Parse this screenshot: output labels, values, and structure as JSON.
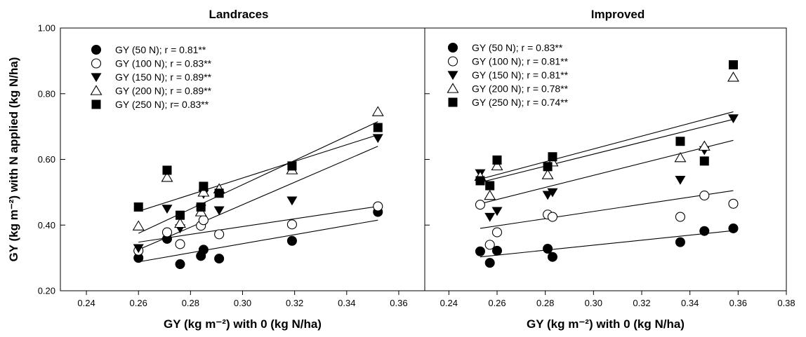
{
  "chart_data": {
    "type": "scatter",
    "y_axis_label": "GY (kg m⁻²) with N applied (kg N/ha)",
    "y_ticks": [
      "0.20",
      "0.40",
      "0.60",
      "0.80",
      "1.00"
    ],
    "ylim": [
      0.2,
      1.0
    ],
    "panels": [
      {
        "title": "Landraces",
        "xlabel": "GY (kg m⁻²) with 0 (kg N/ha)",
        "xlim": [
          0.23,
          0.37
        ],
        "x_ticks": [
          "0.24",
          "0.26",
          "0.28",
          "0.30",
          "0.32",
          "0.34",
          "0.36"
        ],
        "series": [
          {
            "name": "GY (50 N); r = 0.81**",
            "marker": "circle-filled",
            "points": [
              [
                0.26,
                0.3
              ],
              [
                0.271,
                0.358
              ],
              [
                0.276,
                0.281
              ],
              [
                0.284,
                0.306
              ],
              [
                0.285,
                0.325
              ],
              [
                0.291,
                0.298
              ],
              [
                0.319,
                0.352
              ],
              [
                0.352,
                0.44
              ]
            ],
            "fit": [
              [
                0.26,
                0.288
              ],
              [
                0.352,
                0.415
              ]
            ]
          },
          {
            "name": "GY (100 N); r = 0.83**",
            "marker": "circle-open",
            "points": [
              [
                0.26,
                0.322
              ],
              [
                0.271,
                0.378
              ],
              [
                0.276,
                0.342
              ],
              [
                0.284,
                0.398
              ],
              [
                0.285,
                0.415
              ],
              [
                0.291,
                0.372
              ],
              [
                0.319,
                0.402
              ],
              [
                0.352,
                0.457
              ]
            ],
            "fit": [
              [
                0.26,
                0.348
              ],
              [
                0.352,
                0.457
              ]
            ]
          },
          {
            "name": "GY (150 N); r = 0.89**",
            "marker": "triangle-down-filled",
            "points": [
              [
                0.26,
                0.33
              ],
              [
                0.271,
                0.45
              ],
              [
                0.276,
                0.39
              ],
              [
                0.284,
                0.45
              ],
              [
                0.285,
                0.495
              ],
              [
                0.291,
                0.445
              ],
              [
                0.319,
                0.475
              ],
              [
                0.352,
                0.665
              ]
            ],
            "fit": [
              [
                0.26,
                0.325
              ],
              [
                0.352,
                0.64
              ]
            ]
          },
          {
            "name": "GY (200 N); r = 0.89**",
            "marker": "triangle-up-open",
            "points": [
              [
                0.26,
                0.397
              ],
              [
                0.271,
                0.545
              ],
              [
                0.276,
                0.405
              ],
              [
                0.284,
                0.44
              ],
              [
                0.285,
                0.5
              ],
              [
                0.291,
                0.51
              ],
              [
                0.319,
                0.568
              ],
              [
                0.352,
                0.745
              ]
            ],
            "fit": [
              [
                0.26,
                0.375
              ],
              [
                0.352,
                0.715
              ]
            ]
          },
          {
            "name": "GY (250 N); r= 0.83**",
            "marker": "square-filled",
            "points": [
              [
                0.26,
                0.455
              ],
              [
                0.271,
                0.567
              ],
              [
                0.276,
                0.43
              ],
              [
                0.284,
                0.455
              ],
              [
                0.285,
                0.518
              ],
              [
                0.291,
                0.497
              ],
              [
                0.319,
                0.58
              ],
              [
                0.352,
                0.697
              ]
            ],
            "fit": [
              [
                0.26,
                0.442
              ],
              [
                0.352,
                0.675
              ]
            ]
          }
        ]
      },
      {
        "title": "Improved",
        "xlabel": "GY (kg m⁻²) with 0 (kg N/ha)",
        "xlim": [
          0.23,
          0.38
        ],
        "x_ticks": [
          "0.24",
          "0.26",
          "0.28",
          "0.30",
          "0.32",
          "0.34",
          "0.36",
          "0.38"
        ],
        "series": [
          {
            "name": "GY (50 N); r = 0.83**",
            "marker": "circle-filled",
            "points": [
              [
                0.253,
                0.32
              ],
              [
                0.257,
                0.285
              ],
              [
                0.26,
                0.322
              ],
              [
                0.281,
                0.328
              ],
              [
                0.283,
                0.303
              ],
              [
                0.336,
                0.348
              ],
              [
                0.346,
                0.382
              ],
              [
                0.358,
                0.39
              ]
            ],
            "fit": [
              [
                0.253,
                0.303
              ],
              [
                0.358,
                0.383
              ]
            ]
          },
          {
            "name": "GY (100 N); r = 0.81**",
            "marker": "circle-open",
            "points": [
              [
                0.253,
                0.462
              ],
              [
                0.257,
                0.34
              ],
              [
                0.26,
                0.378
              ],
              [
                0.281,
                0.432
              ],
              [
                0.283,
                0.425
              ],
              [
                0.336,
                0.425
              ],
              [
                0.346,
                0.49
              ],
              [
                0.358,
                0.465
              ]
            ],
            "fit": [
              [
                0.253,
                0.39
              ],
              [
                0.358,
                0.505
              ]
            ]
          },
          {
            "name": "GY (150 N); r = 0.81**",
            "marker": "triangle-down-filled",
            "points": [
              [
                0.253,
                0.558
              ],
              [
                0.257,
                0.425
              ],
              [
                0.26,
                0.443
              ],
              [
                0.281,
                0.492
              ],
              [
                0.283,
                0.5
              ],
              [
                0.336,
                0.538
              ],
              [
                0.346,
                0.628
              ],
              [
                0.358,
                0.725
              ]
            ],
            "fit": [
              [
                0.253,
                0.465
              ],
              [
                0.358,
                0.658
              ]
            ]
          },
          {
            "name": "GY (200 N); r = 0.78**",
            "marker": "triangle-up-open",
            "points": [
              [
                0.253,
                0.548
              ],
              [
                0.257,
                0.49
              ],
              [
                0.26,
                0.58
              ],
              [
                0.281,
                0.553
              ],
              [
                0.283,
                0.592
              ],
              [
                0.336,
                0.605
              ],
              [
                0.346,
                0.64
              ],
              [
                0.358,
                0.85
              ]
            ],
            "fit": [
              [
                0.253,
                0.53
              ],
              [
                0.358,
                0.722
              ]
            ]
          },
          {
            "name": "GY (250 N); r = 0.74**",
            "marker": "square-filled",
            "points": [
              [
                0.253,
                0.535
              ],
              [
                0.257,
                0.52
              ],
              [
                0.26,
                0.598
              ],
              [
                0.281,
                0.578
              ],
              [
                0.283,
                0.608
              ],
              [
                0.336,
                0.655
              ],
              [
                0.346,
                0.595
              ],
              [
                0.358,
                0.888
              ]
            ],
            "fit": [
              [
                0.253,
                0.54
              ],
              [
                0.358,
                0.745
              ]
            ]
          }
        ]
      }
    ]
  }
}
